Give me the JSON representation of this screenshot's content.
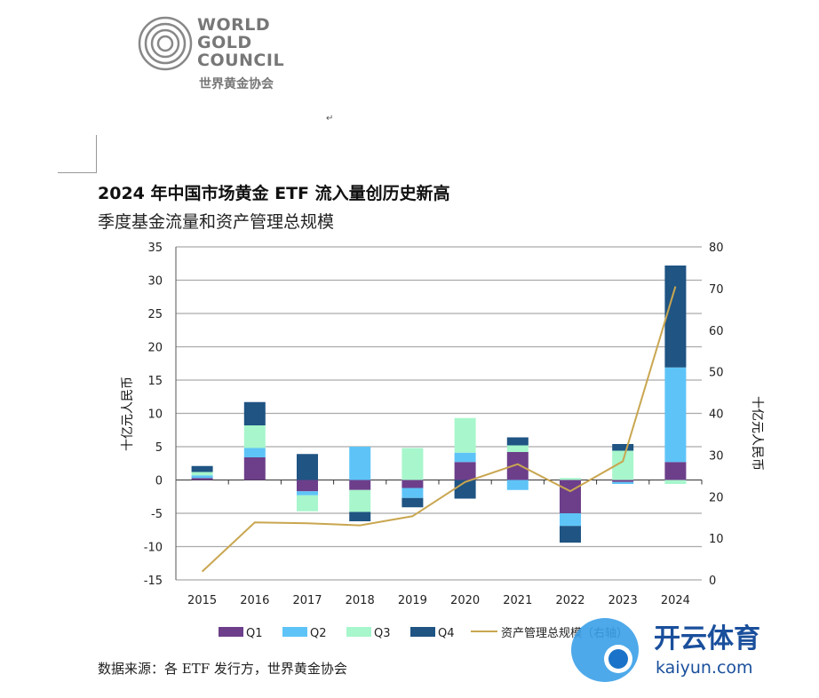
{
  "logo": {
    "lines": [
      "WORLD",
      "GOLD",
      "COUNCIL"
    ],
    "cn": "世界黄金协会"
  },
  "title": "2024 年中国市场黄金 ETF 流入量创历史新高",
  "subtitle": "季度基金流量和资产管理总规模",
  "source": "数据来源：各 ETF 发行方，世界黄金协会",
  "watermark": {
    "cn": "开云体育",
    "en": "kaiyun.com"
  },
  "colors": {
    "Q1": "#6d3f8a",
    "Q2": "#5ec4f7",
    "Q3": "#a7f6cc",
    "Q4": "#1f5483",
    "aum": "#c9a650"
  },
  "chart_data": {
    "type": "bar",
    "stacked": true,
    "categories": [
      "2015",
      "2016",
      "2017",
      "2018",
      "2019",
      "2020",
      "2021",
      "2022",
      "2023",
      "2024"
    ],
    "series": [
      {
        "name": "Q1",
        "values": [
          0.3,
          3.4,
          -1.7,
          -1.5,
          -1.2,
          2.7,
          4.2,
          -5.0,
          -0.3,
          2.7
        ]
      },
      {
        "name": "Q2",
        "values": [
          0.4,
          1.4,
          -0.6,
          5.0,
          -1.5,
          1.4,
          -1.5,
          -1.9,
          -0.3,
          14.2
        ]
      },
      {
        "name": "Q3",
        "values": [
          0.5,
          3.4,
          -2.4,
          -3.3,
          4.8,
          5.2,
          1.0,
          0.3,
          4.4,
          -0.6
        ]
      },
      {
        "name": "Q4",
        "values": [
          0.9,
          3.5,
          3.9,
          -1.4,
          -1.4,
          -2.8,
          1.2,
          -2.5,
          1.0,
          15.3
        ]
      }
    ],
    "line": {
      "name": "资产管理总规模（右轴）",
      "axis": "right",
      "values": [
        2,
        13.8,
        13.6,
        13.1,
        15.3,
        23.5,
        27.8,
        21.3,
        28.5,
        70.5
      ]
    },
    "ylabel": "十亿元人民币",
    "y2label": "十亿元人民币",
    "ylim": [
      -15,
      35
    ],
    "y2lim": [
      0,
      80
    ],
    "yticks": [
      "35",
      "30",
      "25",
      "20",
      "15",
      "10",
      "5",
      "0",
      "-5",
      "-10",
      "-15"
    ],
    "y2ticks": [
      "80",
      "70",
      "60",
      "50",
      "40",
      "30",
      "20",
      "10",
      "0"
    ],
    "grid": true,
    "legend": "bottom"
  }
}
